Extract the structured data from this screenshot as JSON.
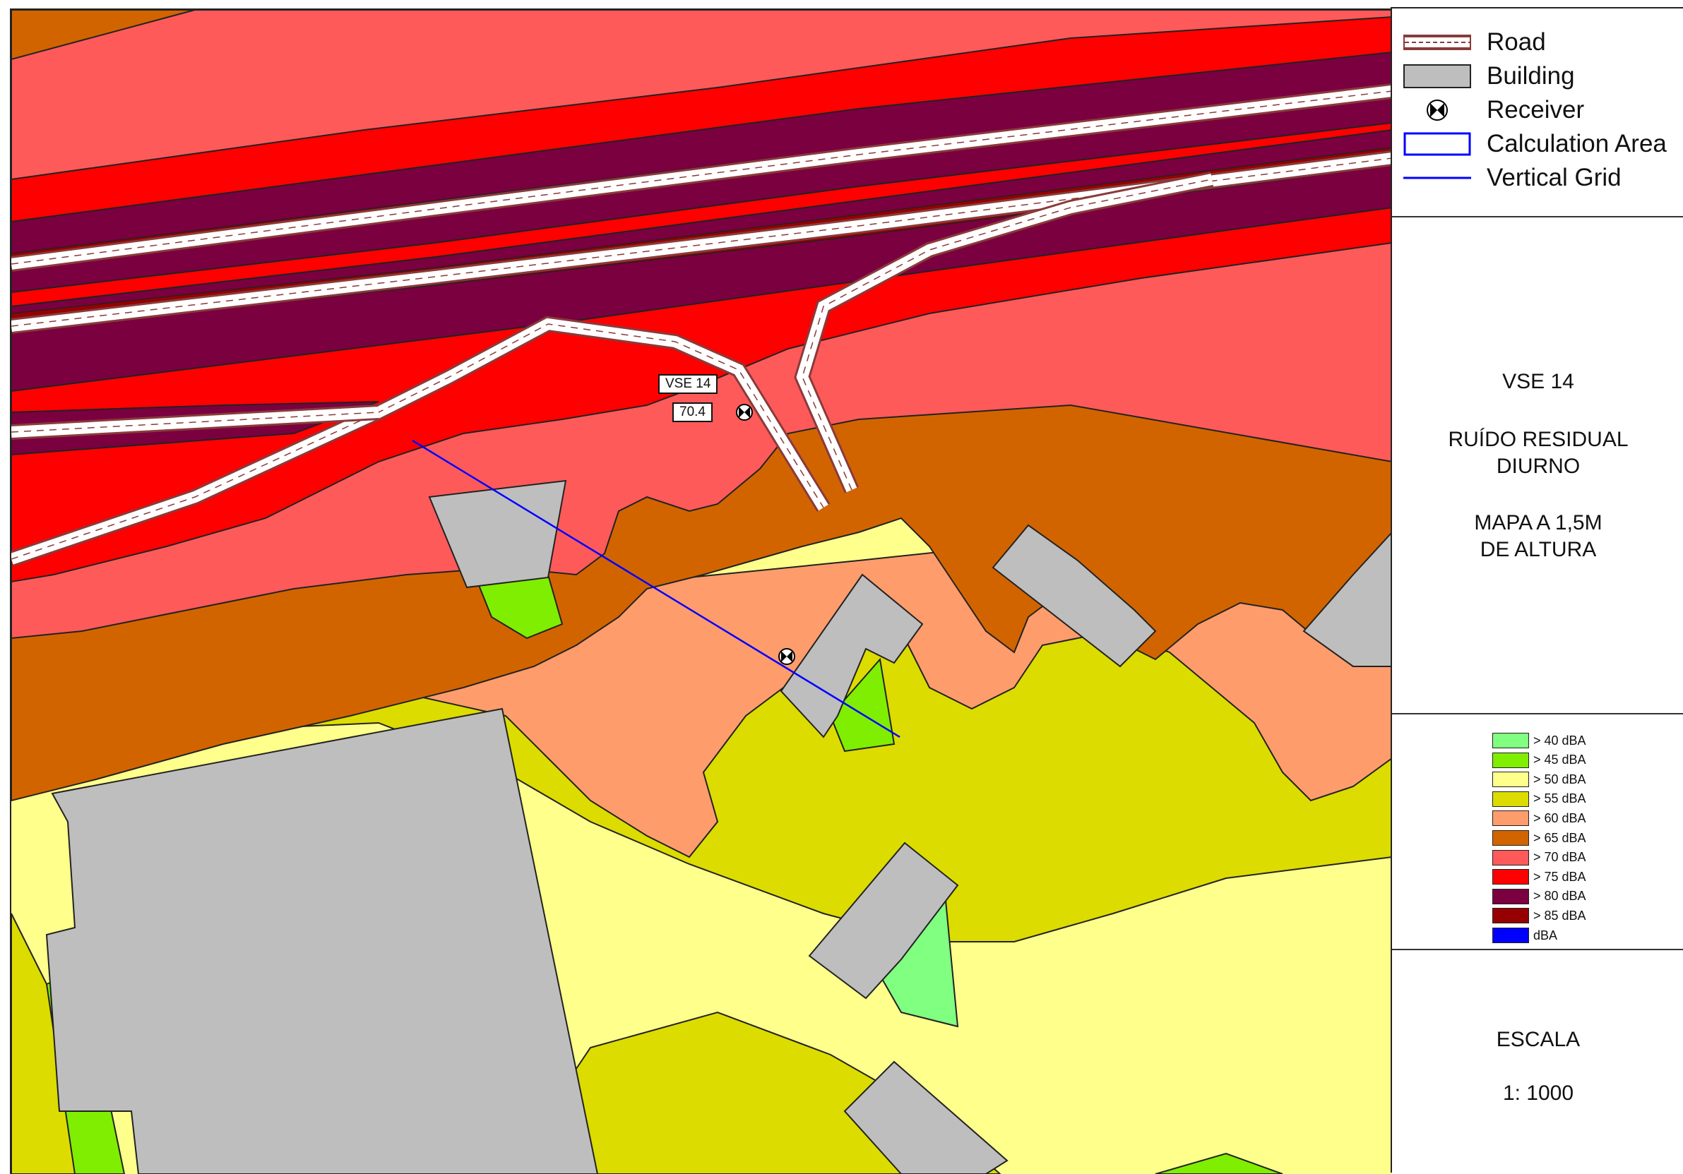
{
  "symbol_legend": {
    "road": "Road",
    "building": "Building",
    "receiver": "Receiver",
    "calc_area": "Calculation Area",
    "vertical_grid": "Vertical Grid"
  },
  "title_block": {
    "line1": "VSE 14",
    "line2": "RUÍDO RESIDUAL",
    "line3": "DIURNO",
    "line4": "MAPA A 1,5M",
    "line5": "DE ALTURA"
  },
  "color_legend": [
    {
      "label": "> 40 dBA",
      "color": "#80ff80"
    },
    {
      "label": "> 45 dBA",
      "color": "#80ee00"
    },
    {
      "label": "> 50 dBA",
      "color": "#ffff8c"
    },
    {
      "label": "> 55 dBA",
      "color": "#dcdc00"
    },
    {
      "label": "> 60 dBA",
      "color": "#ff9c6c"
    },
    {
      "label": "> 65 dBA",
      "color": "#d26400"
    },
    {
      "label": "> 70 dBA",
      "color": "#ff5a5a"
    },
    {
      "label": "> 75 dBA",
      "color": "#ff0000"
    },
    {
      "label": "> 80 dBA",
      "color": "#7a0040"
    },
    {
      "label": "> 85 dBA",
      "color": "#960000"
    },
    {
      "label": "dBA",
      "color": "#0000ff"
    }
  ],
  "scale_block": {
    "title": "ESCALA",
    "value": "1: 1000"
  },
  "receiver_label": {
    "name": "VSE 14",
    "value": "70.4"
  },
  "colors": {
    "road_fill": "#ffffff",
    "road_edge": "#8a3a3a",
    "building": "#bebebe",
    "grid_line": "#0000ff"
  }
}
